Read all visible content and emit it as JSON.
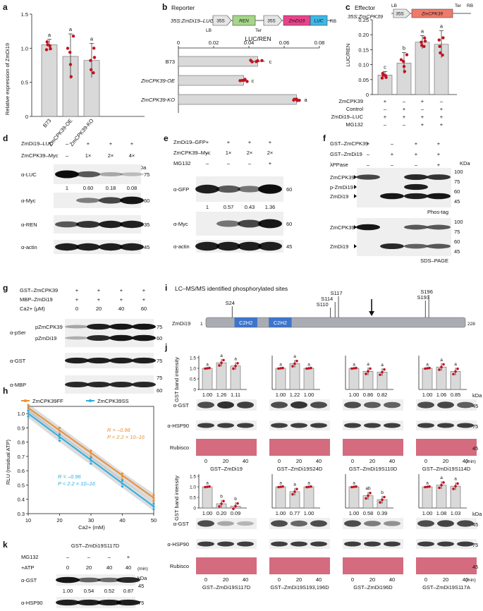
{
  "figure": {
    "panel_labels": [
      "a",
      "b",
      "c",
      "d",
      "e",
      "f",
      "g",
      "h",
      "i",
      "j",
      "k"
    ],
    "colors": {
      "dot": "#c1121f",
      "bar": "#d9d9d9",
      "ff": "#e8903a",
      "ss": "#2aaee0",
      "rubisco": "#c9465e"
    }
  },
  "panel_a": {
    "ylabel": "Relative expression of ZmDi19",
    "yticks": [
      "0",
      "0.5",
      "1.0",
      "1.5"
    ],
    "categories": [
      "B73",
      "ZmCPK39-OE",
      "ZmCPK39-KO"
    ],
    "letters": [
      "a",
      "a",
      "a"
    ]
  },
  "panel_b": {
    "title": "Reporter",
    "construct": {
      "promoter1": "35S:ZmDi19–LUC",
      "box1": "35S",
      "box2": "REN",
      "box3": "35S",
      "box4": "ZmDi19",
      "box5": "LUC",
      "lb": "LB",
      "ter": "Ter",
      "rb": "RB"
    },
    "xlabel": "LUC/REN",
    "xticks": [
      "0",
      "0.02",
      "0.04",
      "0.06",
      "0.08"
    ],
    "categories": [
      "B73",
      "ZmCPK39-OE",
      "ZmCPK39-KO"
    ],
    "letters": [
      "c",
      "c",
      "a"
    ]
  },
  "panel_c": {
    "title": "Effector",
    "construct": {
      "name": "35S:ZmCPK39",
      "lb": "LB",
      "p": "35S",
      "gene": "ZmCPK39",
      "ter": "Ter",
      "rb": "RB"
    },
    "ylabel": "LUC/REN",
    "yticks": [
      "0",
      "0.05",
      "0.10",
      "0.15",
      "0.20",
      "0.25"
    ],
    "letters": [
      "c",
      "b",
      "a",
      "a"
    ],
    "rows": [
      {
        "label": "ZmCPK39",
        "signs": [
          "+",
          "–",
          "+",
          "–"
        ]
      },
      {
        "label": "Control",
        "signs": [
          "–",
          "+",
          "–",
          "+"
        ]
      },
      {
        "label": "ZmDi19–LUC",
        "signs": [
          "+",
          "+",
          "+",
          "+"
        ]
      },
      {
        "label": "MG132",
        "signs": [
          "–",
          "–",
          "+",
          "+"
        ]
      }
    ]
  },
  "panel_d": {
    "rows": [
      {
        "label": "ZmDi19–LUC",
        "signs": [
          "–",
          "+",
          "+",
          "+"
        ]
      },
      {
        "label": "ZmCPK39–Myc",
        "signs": [
          "–",
          "1×",
          "2×",
          "4×"
        ]
      }
    ],
    "kda": "kDa",
    "blots": [
      {
        "label": "α-LUC",
        "mw": "75"
      },
      {
        "label": "α-Myc",
        "mw": "60"
      },
      {
        "label": "α-REN",
        "mw": "35"
      },
      {
        "label": "α-actin",
        "mw": "45"
      }
    ],
    "quant": [
      "1",
      "0.60",
      "0.18",
      "0.08"
    ]
  },
  "panel_e": {
    "rows": [
      {
        "label": "ZmDi19–GFP",
        "signs": [
          "+",
          "+",
          "+",
          "+"
        ]
      },
      {
        "label": "ZmCPK39–Myc",
        "signs": [
          "–",
          "1×",
          "2×",
          "2×"
        ]
      },
      {
        "label": "MG132",
        "signs": [
          "–",
          "–",
          "–",
          "+"
        ]
      }
    ],
    "blots": [
      {
        "label": "α-GFP",
        "mw": "60"
      },
      {
        "label": "α-Myc",
        "mw": "60"
      },
      {
        "label": "α-actin",
        "mw": "45"
      }
    ],
    "quant": [
      "1",
      "0.57",
      "0.43",
      "1.36"
    ]
  },
  "panel_f": {
    "rows": [
      {
        "label": "GST–ZmCPK39",
        "signs": [
          "+",
          "–",
          "+",
          "+"
        ]
      },
      {
        "label": "GST–ZmDi19",
        "signs": [
          "–",
          "+",
          "+",
          "+"
        ]
      },
      {
        "label": "λPPase",
        "signs": [
          "–",
          "–",
          "–",
          "+"
        ]
      }
    ],
    "kda": "KDa",
    "top_labels": [
      "ZmCPK39",
      "p-ZmDi19",
      "ZmDi19"
    ],
    "top_mw": [
      "100",
      "75",
      "60",
      "45"
    ],
    "top_caption": "Phos-tag",
    "bottom_labels": [
      "ZmCPK39",
      "ZmDi19"
    ],
    "bottom_mw": [
      "100",
      "75",
      "60",
      "45"
    ],
    "bottom_caption": "SDS–PAGE"
  },
  "panel_g": {
    "rows": [
      {
        "label": "GST–ZmCPK39",
        "signs": [
          "+",
          "+",
          "+",
          "+"
        ]
      },
      {
        "label": "MBP–ZmDi19",
        "signs": [
          "+",
          "+",
          "+",
          "+"
        ]
      },
      {
        "label": "Ca2+ (μM)",
        "signs": [
          "0",
          "20",
          "40",
          "60"
        ]
      }
    ],
    "blots": [
      {
        "label": "α-pSer",
        "mw": "75"
      },
      {
        "label": "α-GST",
        "mw": "75"
      },
      {
        "label": "α-MBP",
        "mw": "60"
      }
    ],
    "pser_bands": [
      "pZmCPK39",
      "pZmDi19"
    ],
    "pser_mw2": "60",
    "mbp_mw1": "75"
  },
  "panel_h": {
    "legend": [
      "ZmCPK39FF",
      "ZmCPK39SS"
    ],
    "ylabel": "RLU (residual ATP)",
    "xlabel": "Ca2+ (mM)",
    "xticks": [
      "10",
      "20",
      "30",
      "40",
      "50"
    ],
    "yticks": [
      "0.3",
      "0.4",
      "0.5",
      "0.6",
      "0.7",
      "0.8",
      "0.9",
      "1.0"
    ],
    "stat_ff": {
      "r": "R = –0.98",
      "p": "P < 2.2 × 10–16"
    },
    "stat_ss": {
      "r": "R = –0.96",
      "p": "P < 2.2 × 10–16"
    }
  },
  "panel_i": {
    "title": "LC–MS/MS identified phosphorylated sites",
    "protein": "ZmDi19",
    "start": "1",
    "end": "228",
    "domains": [
      "C2H2",
      "C2H2"
    ],
    "sites": [
      "S24",
      "S110",
      "S114",
      "S117",
      "S193",
      "S196"
    ]
  },
  "panel_j": {
    "ylabel": "GST band intensity",
    "yticks": [
      "0",
      "0.5",
      "1.0",
      "1.5"
    ],
    "time_labels": [
      "0",
      "20",
      "40"
    ],
    "time_unit": "(min)",
    "kda": "kDa",
    "blot_labels": [
      "α-GST",
      "α-HSP90",
      "Rubisco"
    ],
    "mw": [
      "45",
      "75",
      "45"
    ],
    "subpanels": [
      {
        "name": "GST–ZmDi19",
        "values": [
          "1.00",
          "1.26",
          "1.11"
        ],
        "letters": [
          "a",
          "a",
          "a"
        ]
      },
      {
        "name": "GST–ZmDi19S24D",
        "values": [
          "1.00",
          "1.22",
          "1.00"
        ],
        "letters": [
          "a",
          "a",
          "a"
        ]
      },
      {
        "name": "GST–ZmDi19S110D",
        "values": [
          "1.00",
          "0.86",
          "0.82"
        ],
        "letters": [
          "a",
          "a",
          "a"
        ]
      },
      {
        "name": "GST–ZmDi19S114D",
        "values": [
          "1.00",
          "1.06",
          "0.85"
        ],
        "letters": [
          "a",
          "a",
          "a"
        ]
      },
      {
        "name": "GST–ZmDi19S117D",
        "values": [
          "1.00",
          "0.20",
          "0.09"
        ],
        "letters": [
          "a",
          "b",
          "b"
        ]
      },
      {
        "name": "GST–ZmDi19S193,196D",
        "values": [
          "1.00",
          "0.77",
          "1.00"
        ],
        "letters": [
          "a",
          "a",
          "a"
        ]
      },
      {
        "name": "GST–ZmDi196D",
        "values": [
          "1.00",
          "0.58",
          "0.39"
        ],
        "letters": [
          "a",
          "ab",
          "b"
        ]
      },
      {
        "name": "GST–ZmDi19S117A",
        "values": [
          "1.00",
          "1.08",
          "1.03"
        ],
        "letters": [
          "a",
          "a",
          "a"
        ]
      }
    ]
  },
  "panel_k": {
    "title": "GST–ZmDi19S117D",
    "rows": [
      {
        "label": "MG132",
        "signs": [
          "–",
          "–",
          "–",
          "+"
        ]
      },
      {
        "label": "+ATP",
        "signs": [
          "0",
          "20",
          "40",
          "40"
        ]
      }
    ],
    "time_unit": "(min)",
    "kda": "kDa",
    "blots": [
      {
        "label": "α-GST",
        "mw": "45"
      },
      {
        "label": "α-HSP90",
        "mw": "75"
      }
    ],
    "quant": [
      "1.00",
      "0.54",
      "0.52",
      "0.87"
    ]
  },
  "chart_data": [
    {
      "type": "bar",
      "panel": "a",
      "categories": [
        "B73",
        "ZmCPK39-OE",
        "ZmCPK39-KO"
      ],
      "values": [
        1.05,
        0.88,
        0.82
      ],
      "errors": [
        0.08,
        0.33,
        0.25
      ],
      "ylabel": "Relative expression of ZmDi19",
      "ylim": [
        0,
        1.5
      ]
    },
    {
      "type": "bar",
      "panel": "b",
      "orientation": "horizontal",
      "categories": [
        "B73",
        "ZmCPK39-OE",
        "ZmCPK39-KO"
      ],
      "values": [
        0.045,
        0.037,
        0.067
      ],
      "errors": [
        0.004,
        0.002,
        0.002
      ],
      "xlabel": "LUC/REN",
      "xlim": [
        0,
        0.08
      ]
    },
    {
      "type": "bar",
      "panel": "c",
      "categories": [
        "1",
        "2",
        "3",
        "4"
      ],
      "values": [
        0.065,
        0.105,
        0.175,
        0.168
      ],
      "errors": [
        0.012,
        0.035,
        0.022,
        0.045
      ],
      "ylabel": "LUC/REN",
      "ylim": [
        0,
        0.25
      ]
    },
    {
      "type": "line",
      "panel": "h",
      "xlabel": "Ca2+ (mM)",
      "ylabel": "RLU (residual ATP)",
      "xlim": [
        10,
        50
      ],
      "ylim": [
        0.3,
        1.05
      ],
      "series": [
        {
          "name": "ZmCPK39FF",
          "x": [
            10,
            20,
            30,
            40,
            50
          ],
          "y": [
            1.04,
            0.88,
            0.72,
            0.56,
            0.41
          ]
        },
        {
          "name": "ZmCPK39SS",
          "x": [
            10,
            20,
            30,
            40,
            50
          ],
          "y": [
            1.0,
            0.83,
            0.67,
            0.51,
            0.35
          ]
        }
      ]
    },
    {
      "type": "bar",
      "panel": "j",
      "ylabel": "GST band intensity",
      "ylim": [
        0,
        1.6
      ],
      "categories": [
        "0",
        "20",
        "40"
      ],
      "series": [
        {
          "name": "GST–ZmDi19",
          "values": [
            1.0,
            1.26,
            1.11
          ]
        },
        {
          "name": "GST–ZmDi19S24D",
          "values": [
            1.0,
            1.22,
            1.0
          ]
        },
        {
          "name": "GST–ZmDi19S110D",
          "values": [
            1.0,
            0.86,
            0.82
          ]
        },
        {
          "name": "GST–ZmDi19S114D",
          "values": [
            1.0,
            1.06,
            0.85
          ]
        },
        {
          "name": "GST–ZmDi19S117D",
          "values": [
            1.0,
            0.2,
            0.09
          ]
        },
        {
          "name": "GST–ZmDi19S193,196D",
          "values": [
            1.0,
            0.77,
            1.0
          ]
        },
        {
          "name": "GST–ZmDi196D",
          "values": [
            1.0,
            0.58,
            0.39
          ]
        },
        {
          "name": "GST–ZmDi19S117A",
          "values": [
            1.0,
            1.08,
            1.03
          ]
        }
      ]
    }
  ]
}
